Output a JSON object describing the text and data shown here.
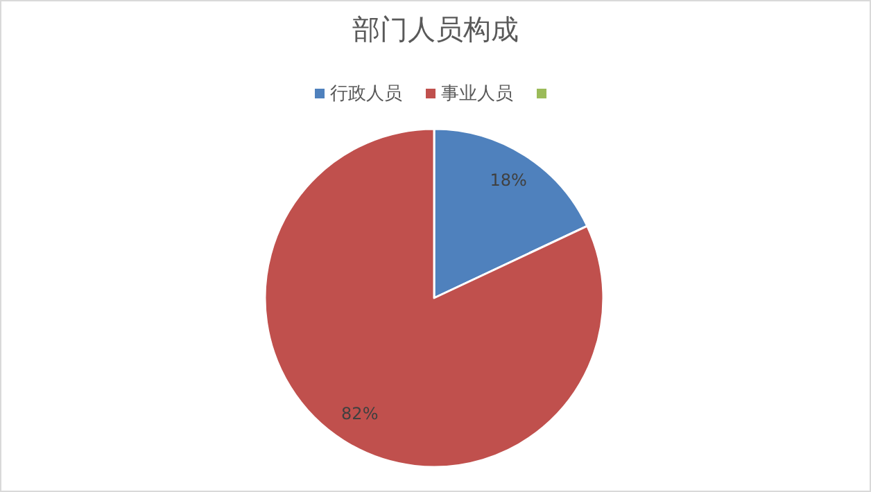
{
  "chart_data": {
    "type": "pie",
    "title": "部门人员构成",
    "categories": [
      "行政人员",
      "事业人员",
      null
    ],
    "values": [
      18,
      82,
      0
    ],
    "colors": [
      "#4f81bd",
      "#c0504d",
      "#9bbb59"
    ],
    "value_labels": [
      "18%",
      "82%",
      null
    ],
    "legend": "top"
  }
}
